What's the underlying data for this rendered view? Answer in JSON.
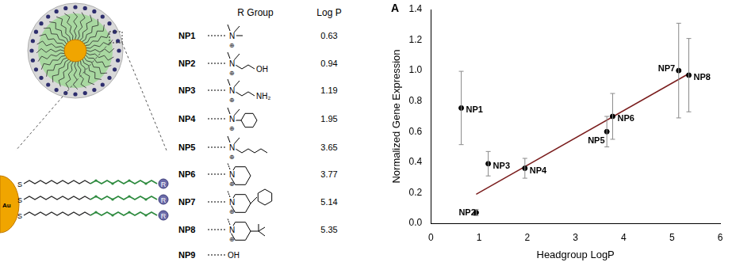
{
  "diagram": {
    "core": "Au",
    "anchor": "S",
    "end_group": "R"
  },
  "table": {
    "headers": [
      "R Group",
      "Log P"
    ],
    "rows": [
      {
        "name": "NP1",
        "atoms": [
          "N",
          "⊕"
        ],
        "log_p": 0.63
      },
      {
        "name": "NP2",
        "atoms": [
          "N",
          "⊕",
          "OH"
        ],
        "log_p": 0.94
      },
      {
        "name": "NP3",
        "atoms": [
          "N",
          "⊕",
          "NH₂"
        ],
        "log_p": 1.19
      },
      {
        "name": "NP4",
        "atoms": [
          "N",
          "⊕"
        ],
        "log_p": 1.95
      },
      {
        "name": "NP5",
        "atoms": [
          "N",
          "⊕"
        ],
        "log_p": 3.65
      },
      {
        "name": "NP6",
        "atoms": [
          "N",
          "⊕"
        ],
        "log_p": 3.77
      },
      {
        "name": "NP7",
        "atoms": [
          "N",
          "⊕"
        ],
        "log_p": 5.14
      },
      {
        "name": "NP8",
        "atoms": [
          "N",
          "⊕"
        ],
        "log_p": 5.35
      },
      {
        "name": "NP9",
        "atoms": [
          "OH"
        ],
        "log_p": null
      }
    ]
  },
  "chart_data": {
    "type": "scatter",
    "title": "A",
    "x_label": "Headgroup LogP",
    "y_label": "Normalized Gene Expression",
    "xlim": [
      0,
      6
    ],
    "xticks": [
      0,
      1,
      2,
      3,
      4,
      5,
      6
    ],
    "ylim": [
      0,
      1.4
    ],
    "yticks": [
      {
        "value": 0,
        "label": "0.0"
      },
      {
        "value": 0.2,
        "label": "0.2"
      },
      {
        "value": 0.4,
        "label": "0.4"
      },
      {
        "value": 0.6,
        "label": "0.6"
      },
      {
        "value": 0.8,
        "label": "0.8"
      },
      {
        "value": 1,
        "label": "1.0"
      },
      {
        "value": 1.2,
        "label": "1.2"
      },
      {
        "value": 1.4,
        "label": "1.4"
      }
    ],
    "grid": false,
    "series": [
      {
        "type": "scatter",
        "color": "#000000",
        "marker": "circle",
        "x": [
          0.63,
          0.94,
          1.19,
          1.95,
          3.65,
          3.77,
          5.14,
          5.35
        ],
        "values": [
          0.755,
          0.07,
          0.39,
          0.36,
          0.6,
          0.7,
          1.0,
          0.97
        ],
        "errors": [
          0.24,
          0.02,
          0.08,
          0.065,
          0.1,
          0.15,
          0.31,
          0.24
        ],
        "point_labels": [
          "NP1",
          "NP2",
          "NP3",
          "NP4",
          "NP5",
          "NP6",
          "NP7",
          "NP8"
        ]
      },
      {
        "type": "line",
        "color": "#7a1c1c",
        "line_style": "solid",
        "x": [
          0.94,
          5.35
        ],
        "values": [
          0.19,
          0.98
        ]
      }
    ]
  }
}
